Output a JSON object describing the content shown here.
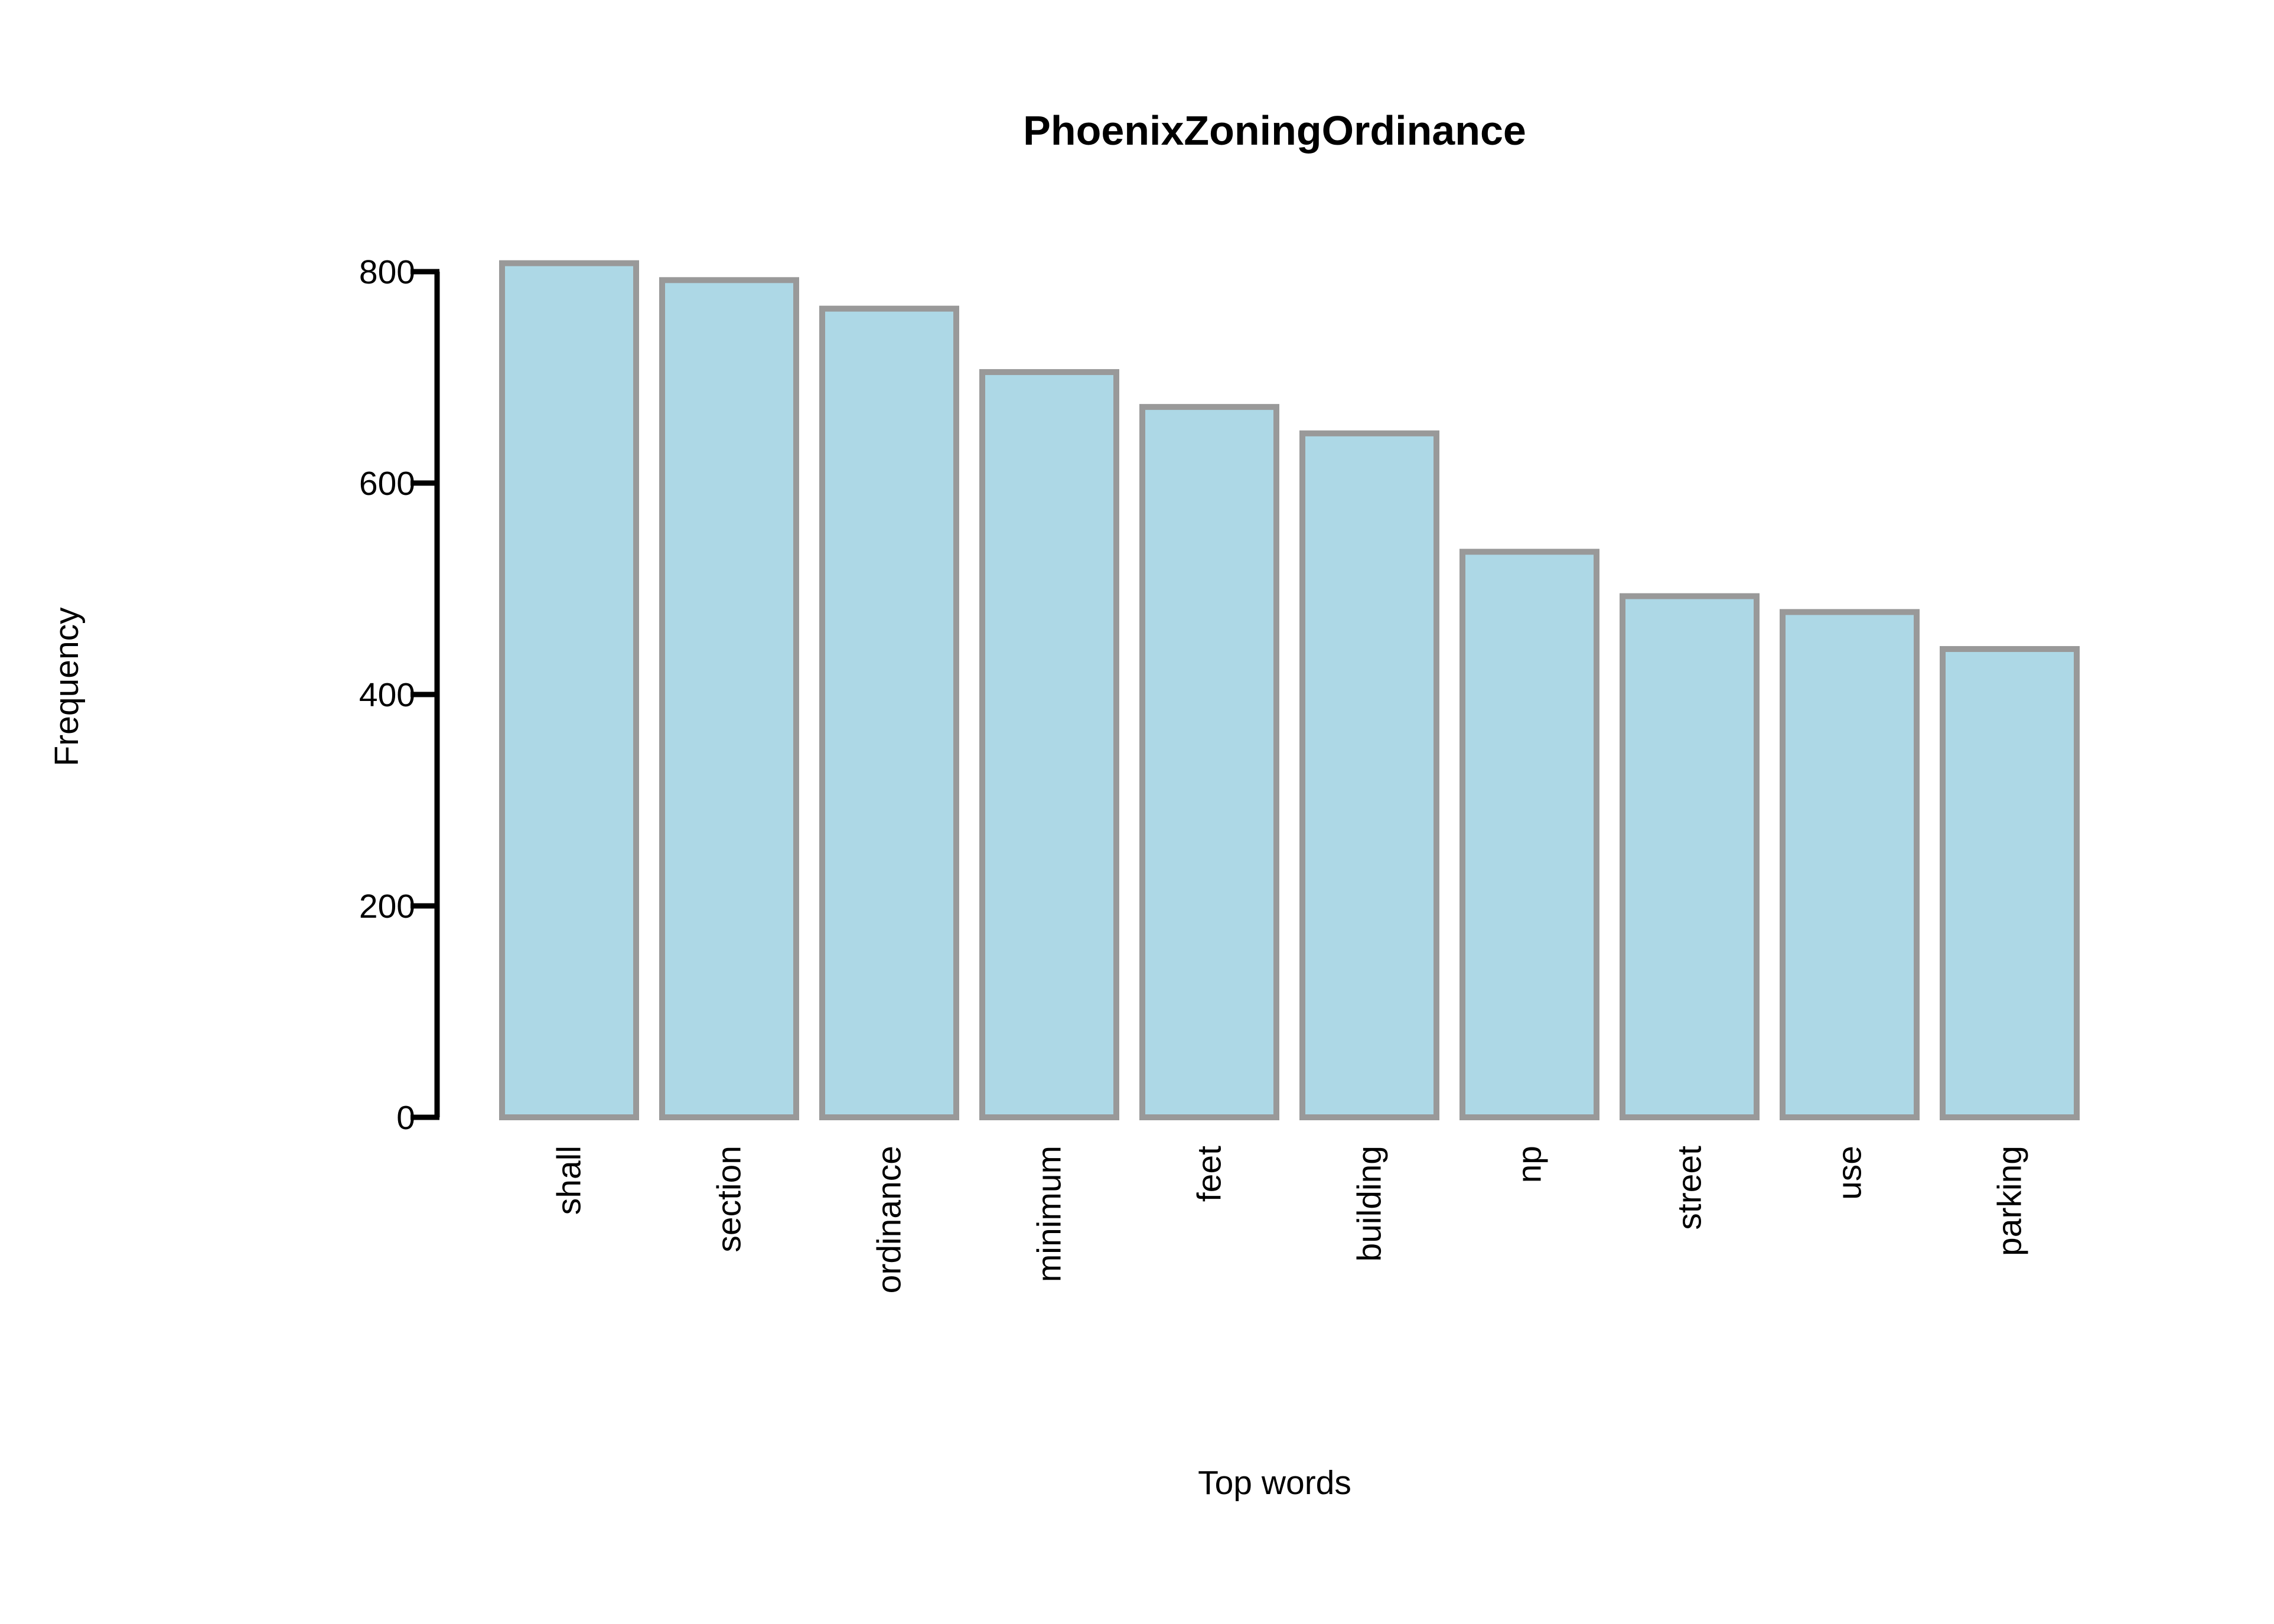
{
  "chart_data": {
    "type": "bar",
    "title": "PhoenixZoningOrdinance",
    "xlabel": "Top words",
    "ylabel": "Frequency",
    "categories": [
      "shall",
      "section",
      "ordinance",
      "minimum",
      "feet",
      "building",
      "np",
      "street",
      "use",
      "parking"
    ],
    "values": [
      808,
      792,
      765,
      705,
      672,
      647,
      535,
      493,
      478,
      443
    ],
    "ylim": [
      0,
      800
    ],
    "yticks": [
      0,
      200,
      400,
      600,
      800
    ],
    "grid": false,
    "legend": "none",
    "colors": {
      "bar_fill": "#add8e6",
      "bar_stroke": "#999999",
      "axis": "#000000"
    }
  }
}
